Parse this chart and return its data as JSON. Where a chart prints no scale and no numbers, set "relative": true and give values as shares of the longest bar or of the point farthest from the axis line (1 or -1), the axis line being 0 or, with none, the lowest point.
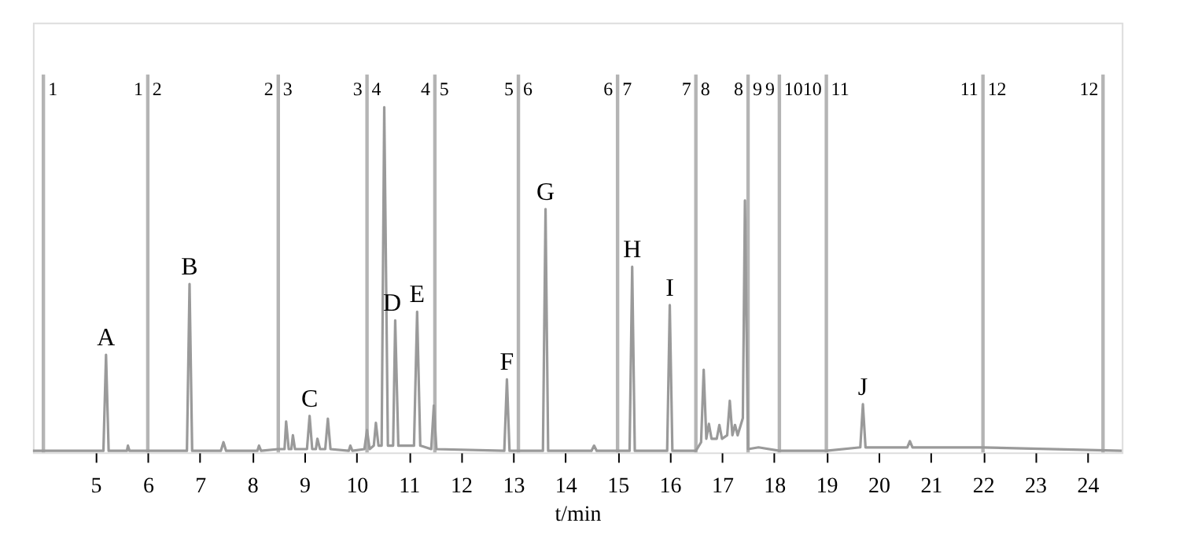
{
  "chart_data": {
    "type": "line",
    "relative": true,
    "xlabel": "t/min",
    "xlim": [
      3.8,
      24.66
    ],
    "xticks": [
      5,
      6,
      7,
      8,
      9,
      10,
      11,
      12,
      13,
      14,
      15,
      16,
      17,
      18,
      19,
      20,
      21,
      22,
      23,
      24
    ],
    "grid": false,
    "marker": "none",
    "line_style": "solid",
    "series": [
      {
        "color": "#9a9a9a",
        "x": [
          3.8,
          5.15,
          5.2,
          5.25,
          5.6,
          5.62,
          5.65,
          6.75,
          6.8,
          6.85,
          7.4,
          7.45,
          7.5,
          8.1,
          8.13,
          8.17,
          8.5,
          8.62,
          8.65,
          8.7,
          8.75,
          8.78,
          8.82,
          9.05,
          9.1,
          9.15,
          9.22,
          9.25,
          9.3,
          9.4,
          9.45,
          9.5,
          9.85,
          9.88,
          9.92,
          10.15,
          10.2,
          10.25,
          10.33,
          10.37,
          10.42,
          10.48,
          10.53,
          10.6,
          10.7,
          10.74,
          10.8,
          11.1,
          11.16,
          11.22,
          11.43,
          11.48,
          11.53,
          12.83,
          12.88,
          12.93,
          13.57,
          13.62,
          13.67,
          14.5,
          14.55,
          14.6,
          15.23,
          15.28,
          15.33,
          15.95,
          16.0,
          16.05,
          16.5,
          16.6,
          16.65,
          16.7,
          16.75,
          16.8,
          16.9,
          16.95,
          17.0,
          17.1,
          17.15,
          17.2,
          17.25,
          17.3,
          17.4,
          17.44,
          17.5,
          17.7,
          18.1,
          19.0,
          19.65,
          19.7,
          19.75,
          20.55,
          20.6,
          20.65,
          22.0,
          24.66
        ],
        "values": [
          0.005,
          0.005,
          0.283,
          0.005,
          0.005,
          0.02,
          0.005,
          0.005,
          0.488,
          0.005,
          0.005,
          0.03,
          0.005,
          0.005,
          0.02,
          0.005,
          0.01,
          0.01,
          0.09,
          0.01,
          0.01,
          0.05,
          0.01,
          0.01,
          0.106,
          0.01,
          0.01,
          0.04,
          0.01,
          0.01,
          0.098,
          0.01,
          0.005,
          0.02,
          0.005,
          0.01,
          0.065,
          0.01,
          0.02,
          0.086,
          0.02,
          0.02,
          1.0,
          0.02,
          0.02,
          0.383,
          0.02,
          0.02,
          0.408,
          0.02,
          0.01,
          0.136,
          0.01,
          0.005,
          0.212,
          0.005,
          0.005,
          0.705,
          0.005,
          0.005,
          0.02,
          0.005,
          0.005,
          0.538,
          0.005,
          0.005,
          0.427,
          0.005,
          0.005,
          0.03,
          0.24,
          0.04,
          0.083,
          0.04,
          0.04,
          0.08,
          0.04,
          0.05,
          0.15,
          0.05,
          0.08,
          0.05,
          0.1,
          0.73,
          0.01,
          0.015,
          0.005,
          0.005,
          0.015,
          0.14,
          0.015,
          0.015,
          0.033,
          0.015,
          0.015,
          0.005
        ]
      }
    ],
    "ref_lines": [
      {
        "axis": "x",
        "value": 4.0,
        "color": "#b4b4b4"
      },
      {
        "axis": "x",
        "value": 6.0,
        "color": "#b4b4b4"
      },
      {
        "axis": "x",
        "value": 8.5,
        "color": "#b4b4b4"
      },
      {
        "axis": "x",
        "value": 10.2,
        "color": "#b4b4b4"
      },
      {
        "axis": "x",
        "value": 11.5,
        "color": "#b4b4b4"
      },
      {
        "axis": "x",
        "value": 13.1,
        "color": "#b4b4b4"
      },
      {
        "axis": "x",
        "value": 15.0,
        "color": "#b4b4b4"
      },
      {
        "axis": "x",
        "value": 16.5,
        "color": "#b4b4b4"
      },
      {
        "axis": "x",
        "value": 17.5,
        "color": "#b4b4b4"
      },
      {
        "axis": "x",
        "value": 18.1,
        "color": "#b4b4b4"
      },
      {
        "axis": "x",
        "value": 19.0,
        "color": "#b4b4b4"
      },
      {
        "axis": "x",
        "value": 22.0,
        "color": "#b4b4b4"
      },
      {
        "axis": "x",
        "value": 24.3,
        "color": "#b4b4b4"
      }
    ],
    "annotations": [
      {
        "text": "A",
        "x": 5.2,
        "y": 0.283
      },
      {
        "text": "B",
        "x": 6.8,
        "y": 0.488
      },
      {
        "text": "C",
        "x": 9.1,
        "y": 0.106
      },
      {
        "text": "D",
        "x": 10.68,
        "y": 0.383
      },
      {
        "text": "E",
        "x": 11.16,
        "y": 0.408
      },
      {
        "text": "F",
        "x": 12.88,
        "y": 0.212
      },
      {
        "text": "G",
        "x": 13.62,
        "y": 0.705
      },
      {
        "text": "H",
        "x": 15.28,
        "y": 0.538
      },
      {
        "text": "I",
        "x": 16.0,
        "y": 0.427
      },
      {
        "text": "J",
        "x": 19.7,
        "y": 0.14
      },
      "1",
      "1",
      "2",
      "2",
      "3",
      "3",
      "4",
      "4",
      "5",
      "5",
      "6",
      "6",
      "7",
      "7",
      "8",
      "8",
      "9",
      "9",
      "10",
      "10",
      "11",
      "11",
      "12",
      "12"
    ]
  }
}
